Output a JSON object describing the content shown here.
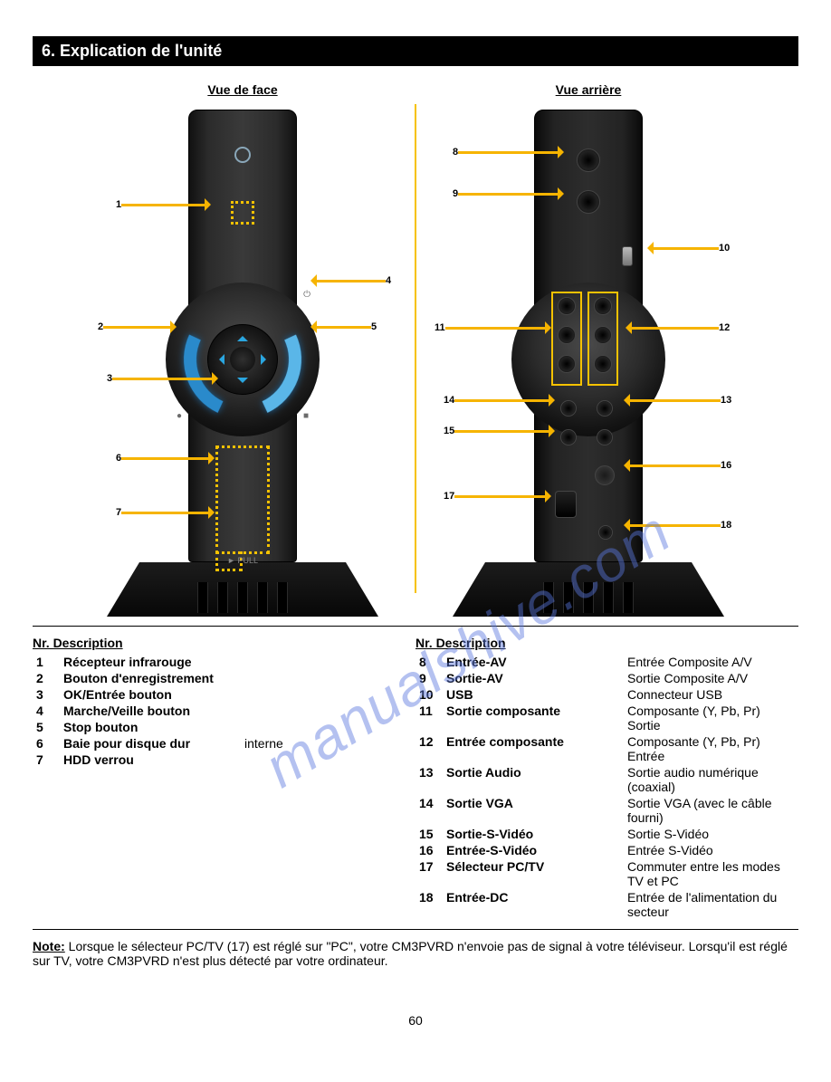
{
  "colors": {
    "arrow": "#f6b400",
    "box": "#f6c200",
    "page_bg": "#ffffff",
    "bar_bg": "#000000",
    "bar_fg": "#ffffff",
    "text": "#000000",
    "led_blue": "#2aa6e0",
    "watermark": "#5a78e0"
  },
  "bar_title": "6. Explication de l'unité",
  "section_heading": "Nr. Description",
  "view_front_title": "Vue de face",
  "view_rear_title": "Vue arrière",
  "callouts": {
    "front": {
      "c1": "1",
      "c2": "2",
      "c3": "3",
      "c4": "4",
      "c5": "5",
      "c6": "6",
      "c7": "7"
    },
    "rear": {
      "c8": "8",
      "c9": "9",
      "c10": "10",
      "c11": "11",
      "c12": "12",
      "c13": "13",
      "c14": "14",
      "c15": "15",
      "c16": "16",
      "c17": "17",
      "c18": "18"
    }
  },
  "desc_head": "Nr. Description",
  "desc_rows_left": [
    {
      "n": "1",
      "k": "Récepteur infrarouge"
    },
    {
      "n": "2",
      "k": "Bouton d'enregistrement"
    },
    {
      "n": "3",
      "k": "OK/Entrée bouton"
    },
    {
      "n": "4",
      "k": "Marche/Veille bouton"
    },
    {
      "n": "5",
      "k": "Stop bouton"
    },
    {
      "n": "6",
      "k": "Baie pour disque dur",
      "d": "interne"
    },
    {
      "n": "7",
      "k": "HDD verrou"
    }
  ],
  "desc_rows_right": [
    {
      "n": "8",
      "k": "Entrée-AV",
      "d": "Entrée Composite A/V"
    },
    {
      "n": "9",
      "k": "Sortie-AV",
      "d": "Sortie Composite A/V"
    },
    {
      "n": "10",
      "k": "USB",
      "d": "Connecteur USB"
    },
    {
      "n": "11",
      "k": "Sortie composante",
      "d": "Composante (Y, Pb, Pr) Sortie"
    },
    {
      "n": "12",
      "k": "Entrée composante",
      "d": "Composante (Y, Pb, Pr) Entrée"
    },
    {
      "n": "13",
      "k": "Sortie Audio",
      "d": "Sortie audio numérique (coaxial)"
    },
    {
      "n": "14",
      "k": "Sortie VGA",
      "d": "Sortie VGA (avec le câble fourni)"
    },
    {
      "n": "15",
      "k": "Sortie-S-Vidéo",
      "d": "Sortie S-Vidéo"
    },
    {
      "n": "16",
      "k": "Entrée-S-Vidéo",
      "d": "Entrée S-Vidéo"
    },
    {
      "n": "17",
      "k": "Sélecteur PC/TV",
      "d": "Commuter entre les modes TV et PC"
    },
    {
      "n": "18",
      "k": "Entrée-DC",
      "d": "Entrée de l'alimentation du secteur"
    }
  ],
  "note_label": "Note:",
  "note_text": "Lorsque le sélecteur PC/TV (17) est réglé sur \"PC\", votre CM3PVRD n'envoie pas de signal à votre téléviseur. Lorsqu'il est réglé sur TV, votre CM3PVRD n'est plus détecté par votre ordinateur.",
  "page_number": "60",
  "watermark": "manualshive.com"
}
